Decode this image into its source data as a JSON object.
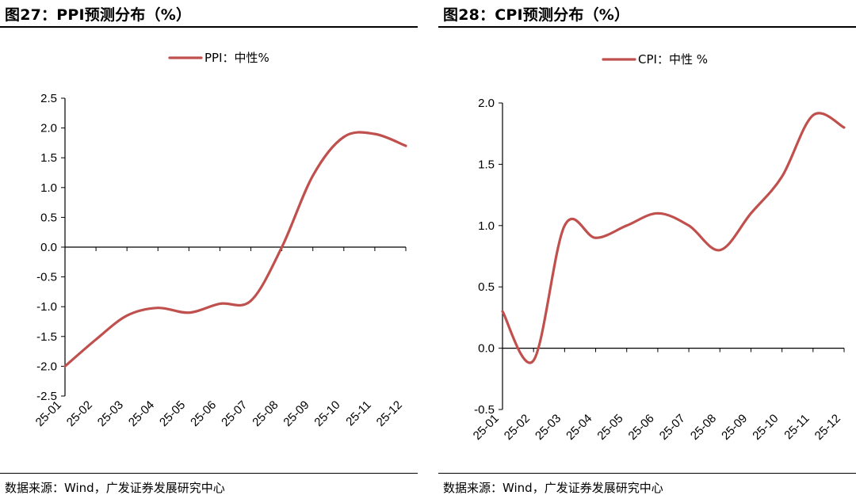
{
  "figures": [
    {
      "title": "图27：PPI预测分布（%）",
      "source": "数据来源：Wind，广发证券发展研究中心"
    },
    {
      "title": "图28：CPI预测分布（%）",
      "source": "数据来源：Wind，广发证券发展研究中心"
    }
  ],
  "chart_data": [
    {
      "type": "line",
      "title": "",
      "xlabel": "",
      "ylabel": "",
      "categories": [
        "25-01",
        "25-02",
        "25-03",
        "25-04",
        "25-05",
        "25-06",
        "25-07",
        "25-08",
        "25-09",
        "25-10",
        "25-11",
        "25-12"
      ],
      "series": [
        {
          "name": "PPI：中性%",
          "color": "#c0504d",
          "values": [
            -2.0,
            -1.55,
            -1.15,
            -1.02,
            -1.1,
            -0.95,
            -0.9,
            0.0,
            1.2,
            1.85,
            1.9,
            1.7
          ]
        }
      ],
      "ylim": [
        -2.5,
        2.5
      ],
      "yticks": [
        "2.5",
        "2.0",
        "1.5",
        "1.0",
        "0.5",
        "0.0",
        "-0.5",
        "-1.0",
        "-1.5",
        "-2.0",
        "-2.5"
      ],
      "legend": "top-center",
      "grid": false
    },
    {
      "type": "line",
      "title": "",
      "xlabel": "",
      "ylabel": "",
      "categories": [
        "25-01",
        "25-02",
        "25-03",
        "25-04",
        "25-05",
        "25-06",
        "25-07",
        "25-08",
        "25-09",
        "25-10",
        "25-11",
        "25-12"
      ],
      "series": [
        {
          "name": "CPI：中性 %",
          "color": "#c0504d",
          "values": [
            0.3,
            -0.1,
            1.0,
            0.9,
            1.0,
            1.1,
            1.0,
            0.8,
            1.1,
            1.4,
            1.9,
            1.8
          ]
        }
      ],
      "ylim": [
        -0.5,
        2.0
      ],
      "yticks": [
        "2.0",
        "1.5",
        "1.0",
        "0.5",
        "0.0",
        "-0.5"
      ],
      "legend": "top-center",
      "grid": false
    }
  ]
}
